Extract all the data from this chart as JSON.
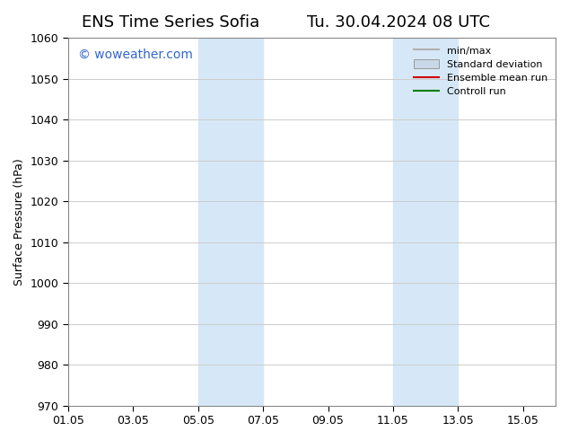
{
  "title_left": "ENS Time Series Sofia",
  "title_right": "Tu. 30.04.2024 08 UTC",
  "ylabel": "Surface Pressure (hPa)",
  "ylim": [
    970,
    1060
  ],
  "yticks": [
    970,
    980,
    990,
    1000,
    1010,
    1020,
    1030,
    1040,
    1050,
    1060
  ],
  "xtick_labels": [
    "01.05",
    "03.05",
    "05.05",
    "07.05",
    "09.05",
    "11.05",
    "13.05",
    "15.05"
  ],
  "xtick_positions": [
    0,
    2,
    4,
    6,
    8,
    10,
    12,
    14
  ],
  "shaded_bands": [
    {
      "x_start": 4,
      "x_end": 6,
      "color": "#d6e8f7"
    },
    {
      "x_start": 10,
      "x_end": 12,
      "color": "#d6e8f7"
    }
  ],
  "legend_entries": [
    {
      "label": "min/max",
      "color": "#b0b0b0",
      "type": "line",
      "lw": 1.5
    },
    {
      "label": "Standard deviation",
      "color": "#c8d8e8",
      "type": "fillbetween"
    },
    {
      "label": "Ensemble mean run",
      "color": "#cc0000",
      "type": "line",
      "lw": 1.5
    },
    {
      "label": "Controll run",
      "color": "#008000",
      "type": "line",
      "lw": 1.5
    }
  ],
  "watermark_text": "© woweather.com",
  "watermark_color": "#3366cc",
  "bg_color": "#ffffff",
  "plot_bg_color": "#ffffff",
  "grid_color": "#cccccc",
  "title_fontsize": 13,
  "axis_fontsize": 9,
  "tick_fontsize": 9
}
